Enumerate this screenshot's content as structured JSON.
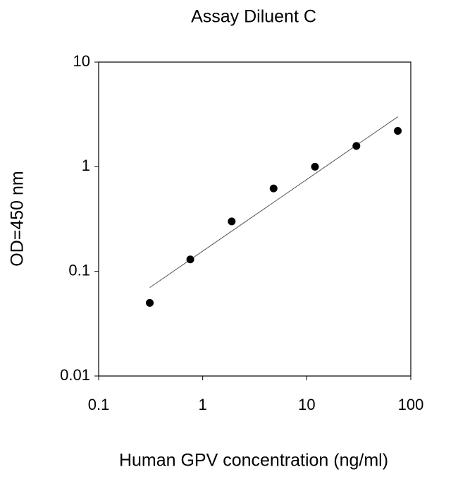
{
  "chart_data": {
    "type": "scatter",
    "title": "Assay Diluent C",
    "x_label": "Human GPV concentration (ng/ml)",
    "y_label": "OD=450 nm",
    "x_scale": "log",
    "y_scale": "log",
    "xlim": [
      0.1,
      100
    ],
    "xticks": [
      0.1,
      1,
      10,
      100
    ],
    "ylim": [
      0.01,
      10
    ],
    "yticks": [
      0.01,
      0.1,
      1,
      10
    ],
    "series": [
      {
        "color": "#000000",
        "x": [
          0.31,
          0.76,
          1.9,
          4.8,
          12,
          30,
          75
        ],
        "values": [
          0.05,
          0.13,
          0.3,
          0.62,
          1.0,
          1.58,
          2.2
        ]
      }
    ],
    "fit_line": {
      "color": "#555555",
      "x": [
        0.31,
        75
      ],
      "values": [
        0.07,
        3.0
      ]
    }
  }
}
